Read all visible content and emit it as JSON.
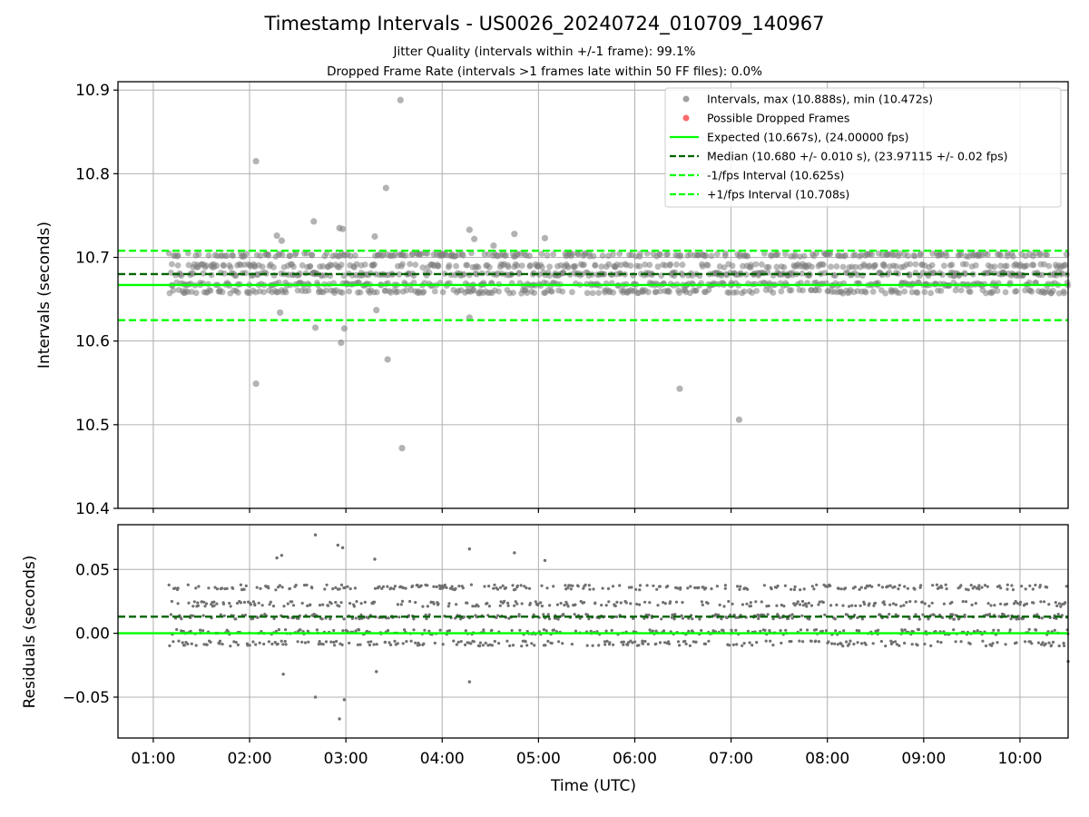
{
  "chart_data": [
    {
      "type": "scatter",
      "title": "Timestamp Intervals - US0026_20240724_010709_140967",
      "subtitle_1": "Jitter Quality (intervals within +/-1 frame): 99.1%",
      "subtitle_2": "Dropped Frame Rate (intervals >1 frames late within 50 FF files): 0.0%",
      "ylabel": "Intervals (seconds)",
      "ylim": [
        10.4,
        10.91
      ],
      "xlim": [
        "00:38",
        "10:30"
      ],
      "yticks": [
        "10.4",
        "10.5",
        "10.6",
        "10.7",
        "10.8",
        "10.9"
      ],
      "grid": true,
      "legend_position": "top-right",
      "legend": [
        "Intervals, max (10.888s), min (10.472s)",
        "Possible Dropped Frames",
        "Expected (10.667s), (24.00000 fps)",
        "Median (10.680 +/- 0.010 s), (23.97115 +/- 0.02 fps)",
        "-1/fps Interval (10.625s)",
        "+1/fps Interval (10.708s)"
      ],
      "colors": {
        "intervals": "#808080",
        "dropped": "#ff0000",
        "expected": "#00ff00",
        "median": "#006400",
        "bounds": "#00ff00"
      },
      "reference_lines": {
        "expected": 10.667,
        "median": 10.68,
        "minus_1_fps": 10.625,
        "plus_1_fps": 10.708
      },
      "series": [
        {
          "name": "Intervals, max (10.888s), min (10.472s)",
          "x_range": [
            "01:10",
            "10:30"
          ],
          "bands_y": [
            10.659,
            10.668,
            10.68,
            10.69,
            10.703
          ],
          "outliers": [
            {
              "x": "02:04",
              "y": 10.815
            },
            {
              "x": "02:04",
              "y": 10.549
            },
            {
              "x": "02:17",
              "y": 10.726
            },
            {
              "x": "02:20",
              "y": 10.72
            },
            {
              "x": "02:19",
              "y": 10.634
            },
            {
              "x": "02:40",
              "y": 10.743
            },
            {
              "x": "02:41",
              "y": 10.616
            },
            {
              "x": "02:56",
              "y": 10.735
            },
            {
              "x": "02:58",
              "y": 10.734
            },
            {
              "x": "02:57",
              "y": 10.598
            },
            {
              "x": "02:59",
              "y": 10.615
            },
            {
              "x": "03:18",
              "y": 10.725
            },
            {
              "x": "03:19",
              "y": 10.637
            },
            {
              "x": "03:25",
              "y": 10.783
            },
            {
              "x": "03:26",
              "y": 10.578
            },
            {
              "x": "03:34",
              "y": 10.888
            },
            {
              "x": "03:35",
              "y": 10.472
            },
            {
              "x": "04:17",
              "y": 10.733
            },
            {
              "x": "04:20",
              "y": 10.722
            },
            {
              "x": "04:17",
              "y": 10.628
            },
            {
              "x": "04:32",
              "y": 10.714
            },
            {
              "x": "04:45",
              "y": 10.728
            },
            {
              "x": "05:04",
              "y": 10.723
            },
            {
              "x": "06:28",
              "y": 10.543
            },
            {
              "x": "07:05",
              "y": 10.506
            }
          ]
        },
        {
          "name": "Possible Dropped Frames",
          "points": []
        }
      ]
    },
    {
      "type": "scatter",
      "ylabel": "Residuals (seconds)",
      "xlabel": "Time (UTC)",
      "ylim": [
        -0.082,
        0.085
      ],
      "yticks": [
        "−0.05",
        "0.00",
        "0.05"
      ],
      "xticks": [
        "01:00",
        "02:00",
        "03:00",
        "04:00",
        "05:00",
        "06:00",
        "07:00",
        "08:00",
        "09:00",
        "10:00"
      ],
      "grid": true,
      "reference_lines": {
        "zero": 0.0,
        "median": 0.013
      },
      "series": [
        {
          "name": "Residuals",
          "bands_y": [
            -0.008,
            0.001,
            0.013,
            0.023,
            0.036
          ],
          "outliers": [
            {
              "x": "02:17",
              "y": 0.059
            },
            {
              "x": "02:20",
              "y": 0.061
            },
            {
              "x": "02:21",
              "y": -0.032
            },
            {
              "x": "02:41",
              "y": 0.077
            },
            {
              "x": "02:41",
              "y": -0.05
            },
            {
              "x": "02:55",
              "y": 0.069
            },
            {
              "x": "02:58",
              "y": 0.067
            },
            {
              "x": "02:56",
              "y": -0.067
            },
            {
              "x": "02:59",
              "y": -0.052
            },
            {
              "x": "03:18",
              "y": 0.058
            },
            {
              "x": "03:19",
              "y": -0.03
            },
            {
              "x": "04:17",
              "y": 0.066
            },
            {
              "x": "04:17",
              "y": -0.038
            },
            {
              "x": "04:45",
              "y": 0.063
            },
            {
              "x": "05:04",
              "y": 0.057
            },
            {
              "x": "10:30",
              "y": -0.022
            }
          ]
        }
      ]
    }
  ]
}
